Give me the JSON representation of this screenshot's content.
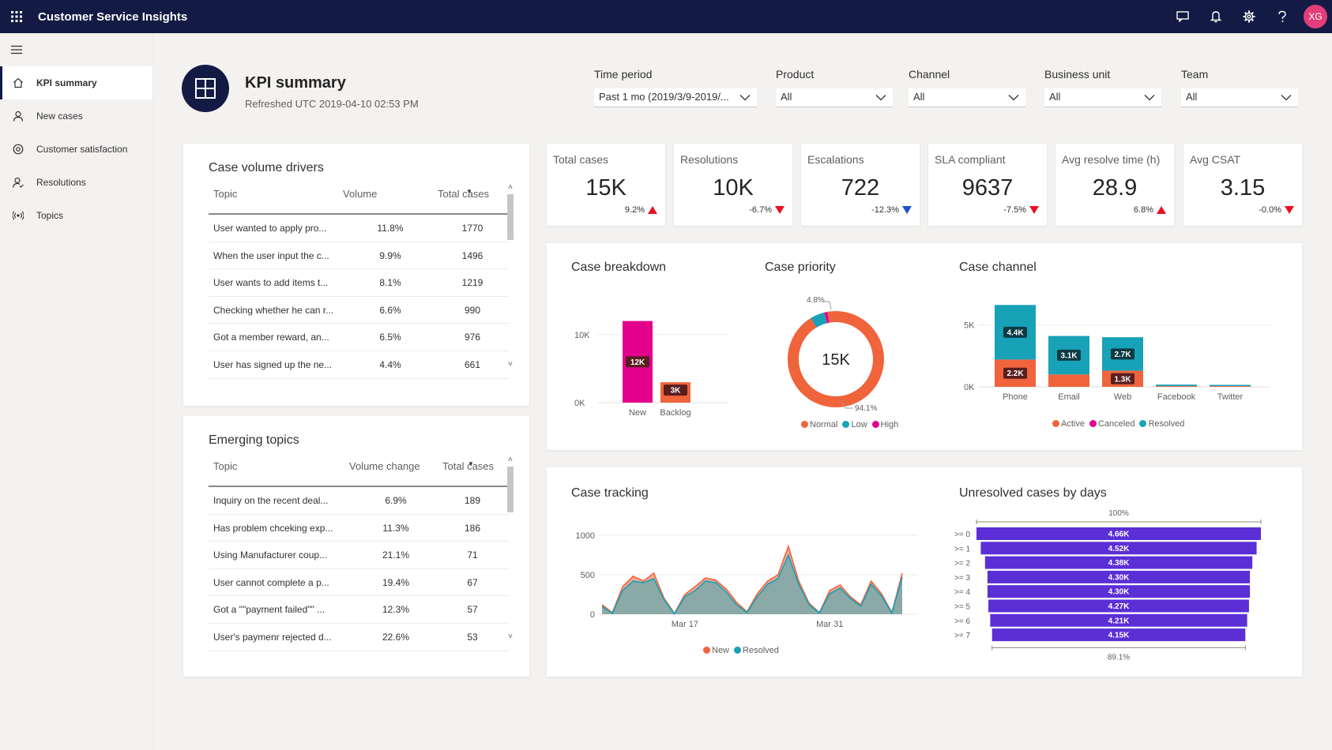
{
  "app": {
    "title": "Customer Service Insights",
    "avatar_initials": "XG"
  },
  "topbar_icons": [
    "waffle-icon",
    "chat-icon",
    "bell-icon",
    "gear-icon",
    "help-icon"
  ],
  "nav": {
    "items": [
      {
        "label": "KPI summary",
        "icon": "home-icon",
        "active": true
      },
      {
        "label": "New cases",
        "icon": "person-icon",
        "active": false
      },
      {
        "label": "Customer satisfaction",
        "icon": "satisfaction-icon",
        "active": false
      },
      {
        "label": "Resolutions",
        "icon": "person-check-icon",
        "active": false
      },
      {
        "label": "Topics",
        "icon": "topics-icon",
        "active": false
      }
    ]
  },
  "header": {
    "title": "KPI summary",
    "refreshed": "Refreshed UTC 2019-04-10 02:53 PM"
  },
  "filters": [
    {
      "label": "Time period",
      "value": "Past 1 mo (2019/3/9-2019/..."
    },
    {
      "label": "Product",
      "value": "All"
    },
    {
      "label": "Channel",
      "value": "All"
    },
    {
      "label": "Business unit",
      "value": "All"
    },
    {
      "label": "Team",
      "value": "All"
    }
  ],
  "case_volume_drivers": {
    "title": "Case volume drivers",
    "columns": [
      "Topic",
      "Volume",
      "Total cases"
    ],
    "rows": [
      [
        "User wanted to apply pro...",
        "11.8%",
        "1770"
      ],
      [
        "When the user input the c...",
        "9.9%",
        "1496"
      ],
      [
        "User wants to add items t...",
        "8.1%",
        "1219"
      ],
      [
        "Checking whether he can r...",
        "6.6%",
        "990"
      ],
      [
        "Got a member reward, an...",
        "6.5%",
        "976"
      ],
      [
        "User has signed up the ne...",
        "4.4%",
        "661"
      ]
    ]
  },
  "emerging_topics": {
    "title": "Emerging topics",
    "columns": [
      "Topic",
      "Volume change",
      "Total cases"
    ],
    "rows": [
      [
        "Inquiry on the recent deal...",
        "6.9%",
        "189"
      ],
      [
        "Has problem chceking exp...",
        "11.3%",
        "186"
      ],
      [
        "Using Manufacturer coup...",
        "21.1%",
        "71"
      ],
      [
        "User cannot complete a p...",
        "19.4%",
        "67"
      ],
      [
        "Got a \"\"payment failed\"\" ...",
        "12.3%",
        "57"
      ],
      [
        "User's paymenr rejected d...",
        "22.6%",
        "53"
      ]
    ]
  },
  "kpis": [
    {
      "label": "Total cases",
      "value": "15K",
      "delta": "9.2%",
      "trend": "up",
      "color": "#e81123"
    },
    {
      "label": "Resolutions",
      "value": "10K",
      "delta": "-6.7%",
      "trend": "down",
      "color": "#e81123"
    },
    {
      "label": "Escalations",
      "value": "722",
      "delta": "-12.3%",
      "trend": "down",
      "color": "#1f4fd1"
    },
    {
      "label": "SLA compliant",
      "value": "9637",
      "delta": "-7.5%",
      "trend": "down",
      "color": "#e81123"
    },
    {
      "label": "Avg resolve time (h)",
      "value": "28.9",
      "delta": "6.8%",
      "trend": "up",
      "color": "#e81123"
    },
    {
      "label": "Avg CSAT",
      "value": "3.15",
      "delta": "-0.0%",
      "trend": "down",
      "color": "#e81123"
    }
  ],
  "colors": {
    "navy": "#131b44",
    "magenta": "#e3008c",
    "orange": "#f0643c",
    "teal": "#17a2b8",
    "dark_red": "#a4262c",
    "purple": "#5b2fd6",
    "area_new": "#f0a088",
    "area_resolved": "#7fa9a8"
  },
  "chart_data": [
    {
      "type": "bar",
      "title": "Case breakdown",
      "categories": [
        "New",
        "Backlog"
      ],
      "series": [
        {
          "values": [
            12000,
            3000
          ],
          "labels": [
            "12K",
            "3K"
          ],
          "colors": [
            "#e3008c",
            "#f0643c"
          ]
        }
      ],
      "y_ticks": [
        "10K",
        "0K"
      ],
      "ylim": [
        0,
        13000
      ]
    },
    {
      "type": "pie",
      "title": "Case priority",
      "center_label": "15K",
      "slices": [
        {
          "name": "Normal",
          "value": 94.1,
          "color": "#f0643c"
        },
        {
          "name": "Low",
          "value": 4.8,
          "color": "#17a2b8"
        },
        {
          "name": "High",
          "value": 1.1,
          "color": "#e3008c"
        }
      ],
      "annotations": [
        "4.8%",
        "94.1%"
      ]
    },
    {
      "type": "bar",
      "title": "Case channel",
      "stacked": true,
      "categories": [
        "Phone",
        "Email",
        "Web",
        "Facebook",
        "Twitter"
      ],
      "series": [
        {
          "name": "Active",
          "values": [
            2200,
            1000,
            1300,
            60,
            60
          ],
          "labels": [
            "2.2K",
            "",
            "1.3K",
            "",
            ""
          ],
          "color": "#f0643c"
        },
        {
          "name": "Canceled",
          "values": [
            0,
            0,
            0,
            0,
            0
          ],
          "labels": [
            "",
            "",
            "",
            "",
            ""
          ],
          "color": "#e3008c"
        },
        {
          "name": "Resolved",
          "values": [
            4400,
            3100,
            2700,
            120,
            100
          ],
          "labels": [
            "4.4K",
            "3.1K",
            "2.7K",
            "",
            ""
          ],
          "color": "#17a2b8"
        }
      ],
      "y_ticks": [
        "5K",
        "0K"
      ],
      "ylim": [
        0,
        7000
      ]
    },
    {
      "type": "area",
      "title": "Case tracking",
      "x_ticks": [
        "Mar 17",
        "Mar 31"
      ],
      "y_ticks": [
        "1000",
        "500",
        "0"
      ],
      "ylim": [
        0,
        1000
      ],
      "series": [
        {
          "name": "New",
          "color": "#f0643c",
          "values": [
            120,
            20,
            350,
            480,
            420,
            520,
            200,
            10,
            250,
            350,
            460,
            430,
            320,
            150,
            30,
            260,
            420,
            500,
            860,
            420,
            140,
            20,
            300,
            370,
            220,
            120,
            420,
            260,
            20,
            520
          ]
        },
        {
          "name": "Resolved",
          "color": "#17a2b8",
          "values": [
            100,
            10,
            300,
            420,
            400,
            450,
            180,
            5,
            220,
            300,
            420,
            400,
            280,
            120,
            20,
            220,
            380,
            450,
            750,
            380,
            120,
            15,
            260,
            330,
            200,
            100,
            380,
            230,
            15,
            470
          ]
        }
      ]
    },
    {
      "type": "bar",
      "title": "Unresolved cases by days",
      "orientation": "horizontal",
      "categories": [
        ">= 0",
        ">= 1",
        ">= 2",
        ">= 3",
        ">= 4",
        ">= 5",
        ">= 6",
        ">= 7"
      ],
      "values": [
        4660,
        4520,
        4380,
        4300,
        4300,
        4270,
        4210,
        4150
      ],
      "labels": [
        "4.66K",
        "4.52K",
        "4.38K",
        "4.30K",
        "4.30K",
        "4.27K",
        "4.21K",
        "4.15K"
      ],
      "annotations": [
        "100%",
        "89.1%"
      ],
      "color": "#5b2fd6"
    }
  ]
}
